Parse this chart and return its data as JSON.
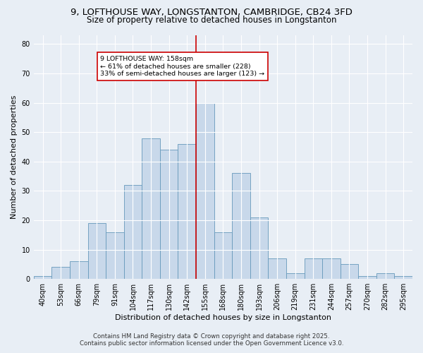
{
  "title1": "9, LOFTHOUSE WAY, LONGSTANTON, CAMBRIDGE, CB24 3FD",
  "title2": "Size of property relative to detached houses in Longstanton",
  "xlabel": "Distribution of detached houses by size in Longstanton",
  "ylabel": "Number of detached properties",
  "footer1": "Contains HM Land Registry data © Crown copyright and database right 2025.",
  "footer2": "Contains public sector information licensed under the Open Government Licence v3.0.",
  "bin_labels": [
    "40sqm",
    "53sqm",
    "66sqm",
    "79sqm",
    "91sqm",
    "104sqm",
    "117sqm",
    "130sqm",
    "142sqm",
    "155sqm",
    "168sqm",
    "180sqm",
    "193sqm",
    "206sqm",
    "219sqm",
    "231sqm",
    "244sqm",
    "257sqm",
    "270sqm",
    "282sqm",
    "295sqm"
  ],
  "bar_heights": [
    1,
    4,
    6,
    19,
    16,
    32,
    48,
    44,
    46,
    60,
    16,
    36,
    21,
    7,
    2,
    7,
    7,
    5,
    1,
    2,
    1
  ],
  "bar_color": "#c8d8ea",
  "bar_edge_color": "#6699bb",
  "vline_x": 8.5,
  "vline_color": "#cc0000",
  "annotation_text": "9 LOFTHOUSE WAY: 158sqm\n← 61% of detached houses are smaller (228)\n33% of semi-detached houses are larger (123) →",
  "annotation_box_color": "#ffffff",
  "annotation_box_edge": "#cc0000",
  "ylim": [
    0,
    83
  ],
  "yticks": [
    0,
    10,
    20,
    30,
    40,
    50,
    60,
    70,
    80
  ],
  "bg_color": "#e8eef5",
  "plot_bg_color": "#e8eef5",
  "grid_color": "#ffffff",
  "title_fontsize": 9.5,
  "subtitle_fontsize": 8.5,
  "axis_label_fontsize": 8,
  "tick_fontsize": 7,
  "footer_fontsize": 6.2
}
